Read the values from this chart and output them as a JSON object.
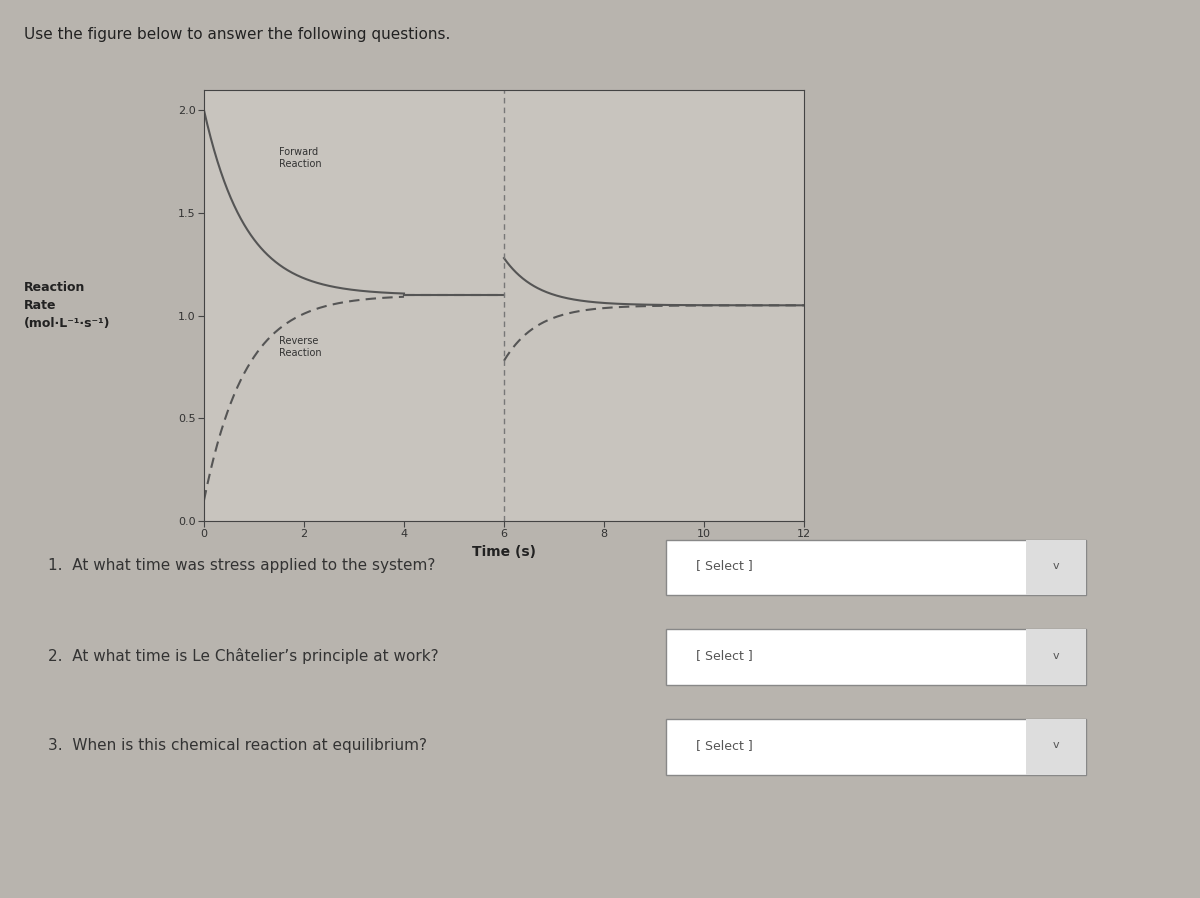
{
  "title": "Use the figure below to answer the following questions.",
  "ylabel_line1": "Reaction",
  "ylabel_line2": "Rate",
  "ylabel_line3": "(mol·L⁻¹·s⁻¹)",
  "xlabel": "Time (s)",
  "xlim": [
    0,
    12
  ],
  "ylim": [
    0,
    2.1
  ],
  "yticks": [
    0.0,
    0.5,
    1.0,
    1.5,
    2.0
  ],
  "xtick_vals": [
    0,
    2,
    4,
    6,
    8,
    10,
    12
  ],
  "forward_label_line1": "Forward",
  "forward_label_line2": "Reaction",
  "reverse_label_line1": "Reverse",
  "reverse_label_line2": "Reaction",
  "equilibrium1_x": 4.0,
  "stress_x": 6.0,
  "forward_color": "#555555",
  "reverse_color": "#555555",
  "bg_color": "#b8b4ae",
  "plot_bg_color": "#c8c4be",
  "questions": [
    "1.  At what time was stress applied to the system?",
    "2.  At what time is Le Châtelier’s principle at work?",
    "3.  When is this chemical reaction at equilibrium?"
  ],
  "select_label": "[ Select ]",
  "eq1_val": 1.1,
  "eq2_val": 1.05,
  "fwd_start": 2.0,
  "fwd_decay": 1.2,
  "fwd_stress_start": 1.28,
  "fwd_stress_decay": 1.5,
  "rev_start": 0.1,
  "rev_decay": 1.2,
  "rev_stress_start": 0.78,
  "rev_stress_decay": 1.5
}
